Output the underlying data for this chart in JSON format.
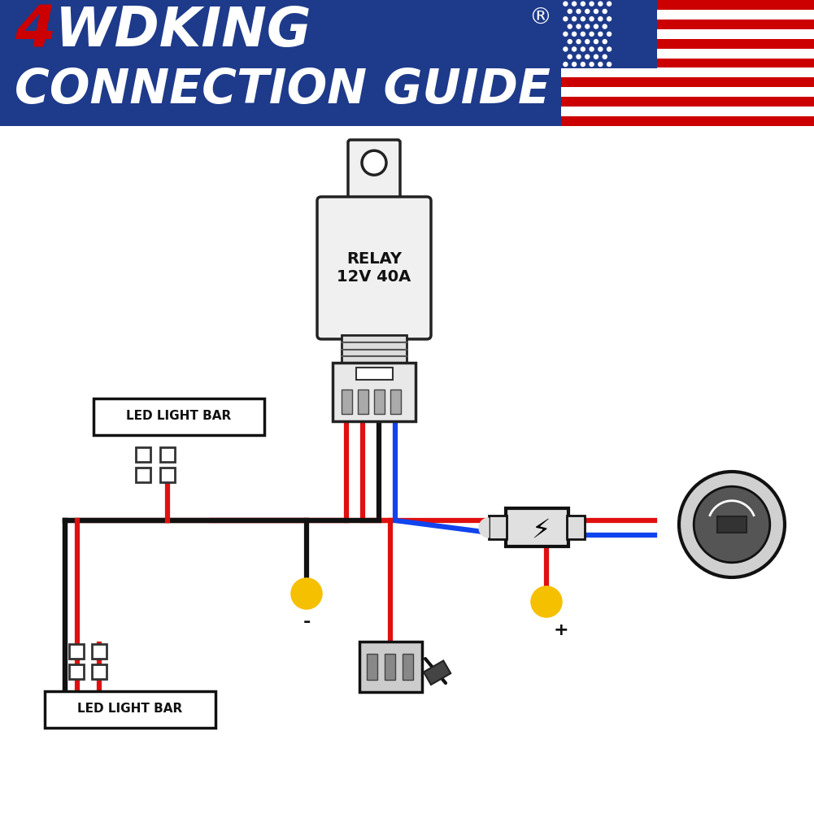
{
  "bg_color": "#ffffff",
  "header_bg": "#1e3a8a",
  "wire_red": "#e01010",
  "wire_blue": "#1144ee",
  "wire_black": "#111111",
  "yellow": "#f5c000",
  "relay_label": "RELAY\n12V 40A",
  "led_label": "LED LIGHT BAR",
  "minus_label": "-",
  "plus_label": "+"
}
